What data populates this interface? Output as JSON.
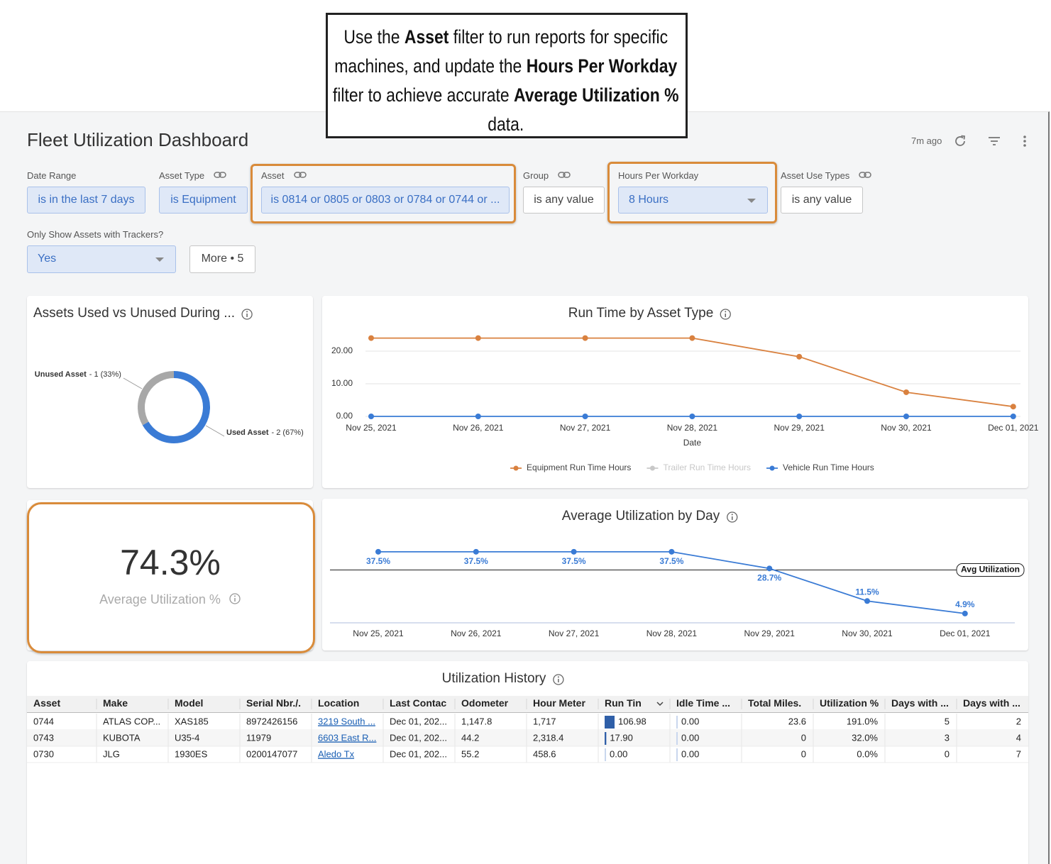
{
  "callout": [
    {
      "text": "Use the ",
      "bold": false
    },
    {
      "text": "Asset",
      "bold": true
    },
    {
      "text": " filter to run reports for specific machines, and update the ",
      "bold": false
    },
    {
      "text": "Hours Per Workday",
      "bold": true
    },
    {
      "text": " filter to achieve accurate ",
      "bold": false
    },
    {
      "text": "Average Utilization %",
      "bold": true
    },
    {
      "text": " data.",
      "bold": false
    }
  ],
  "header": {
    "title": "Fleet Utilization Dashboard",
    "updated": "7m ago"
  },
  "filters": [
    {
      "label": "Date Range",
      "value": "is in the last 7 days"
    },
    {
      "label": "Asset Type",
      "value": "is Equipment"
    },
    {
      "label": "Asset",
      "value": "is 0814 or 0805 or 0803 or 0784 or 0744 or ..."
    },
    {
      "label": "Group",
      "value": "is any value"
    },
    {
      "label": "Hours Per Workday",
      "value": "8 Hours"
    },
    {
      "label": "Asset Use Types",
      "value": "is any value"
    },
    {
      "label": "Only Show Assets with Trackers?",
      "value": "Yes"
    }
  ],
  "more_button": "More • 5",
  "chart_data": [
    {
      "type": "pie",
      "title": "Assets Used vs Unused During ...",
      "categories": [
        "Unused Asset",
        "Used Asset"
      ],
      "values": [
        1,
        2
      ],
      "value_labels": [
        "- 1 (33%)",
        "- 2 (67%)"
      ],
      "colors": [
        "#a8a8a8",
        "#3a7bd5"
      ],
      "donut": true
    },
    {
      "type": "line",
      "title": "Run Time by Asset Type",
      "x_label": "Date",
      "categories": [
        "Nov 25, 2021",
        "Nov 26, 2021",
        "Nov 27, 2021",
        "Nov 28, 2021",
        "Nov 29, 2021",
        "Nov 30, 2021",
        "Dec 01, 2021"
      ],
      "ylim": [
        0,
        25
      ],
      "yticks": [
        {
          "value": 0,
          "label": "0.00"
        },
        {
          "value": 10,
          "label": "10.00"
        },
        {
          "value": 20,
          "label": "20.00"
        }
      ],
      "grid": true,
      "series": [
        {
          "name": "Equipment Run Time Hours",
          "color": "#d9813f",
          "values": [
            24,
            24,
            24,
            24,
            18.3,
            7.4,
            3.0
          ]
        },
        {
          "name": "Trailer Run Time Hours",
          "color": "#c8c8c8",
          "hidden": true,
          "values": [
            null,
            null,
            null,
            null,
            null,
            null,
            null
          ]
        },
        {
          "name": "Vehicle Run Time Hours",
          "color": "#3a7bd5",
          "values": [
            0,
            0,
            0,
            0,
            0,
            0,
            0
          ]
        }
      ]
    },
    {
      "type": "line",
      "title": "Average Utilization by Day",
      "categories": [
        "Nov 25, 2021",
        "Nov 26, 2021",
        "Nov 27, 2021",
        "Nov 28, 2021",
        "Nov 29, 2021",
        "Nov 30, 2021",
        "Dec 01, 2021"
      ],
      "ylim": [
        0,
        44
      ],
      "series": [
        {
          "color": "#3a7bd5",
          "values": [
            37.5,
            37.5,
            37.5,
            37.5,
            28.7,
            11.5,
            4.9
          ],
          "value_labels": [
            "37.5%",
            "37.5%",
            "37.5%",
            "37.5%",
            "28.7%",
            "11.5%",
            "4.9%"
          ]
        }
      ],
      "reference_line": {
        "label": "Avg Utilization",
        "value": 27.9
      }
    }
  ],
  "kpi": {
    "value": "74.3%",
    "label": "Average Utilization %"
  },
  "table": {
    "title": "Utilization History",
    "columns": [
      "Asset",
      "Make",
      "Model",
      "Serial Nbr./.",
      "Location",
      "Last Contac",
      "Odometer",
      "Hour Meter",
      "Run Tin",
      "Idle Time ...",
      "Total Miles.",
      "Utilization %",
      "Days with ...",
      "Days with ..."
    ],
    "rows": [
      [
        "0744",
        "ATLAS COP...",
        "XAS185",
        "8972426156",
        "3219 South ...",
        "Dec 01, 202...",
        "1,147.8",
        "1,717",
        "106.98",
        "0.00",
        "23.6",
        "191.0%",
        "5",
        "2"
      ],
      [
        "0743",
        "KUBOTA",
        "U35-4",
        "11979",
        "6603 East R...",
        "Dec 01, 202...",
        "44.2",
        "2,318.4",
        "17.90",
        "0.00",
        "0",
        "32.0%",
        "3",
        "4"
      ],
      [
        "0730",
        "JLG",
        "1930ES",
        "0200147077",
        "Aledo Tx",
        "Dec 01, 202...",
        "55.2",
        "458.6",
        "0.00",
        "0.00",
        "0",
        "0.0%",
        "0",
        "7"
      ]
    ]
  }
}
